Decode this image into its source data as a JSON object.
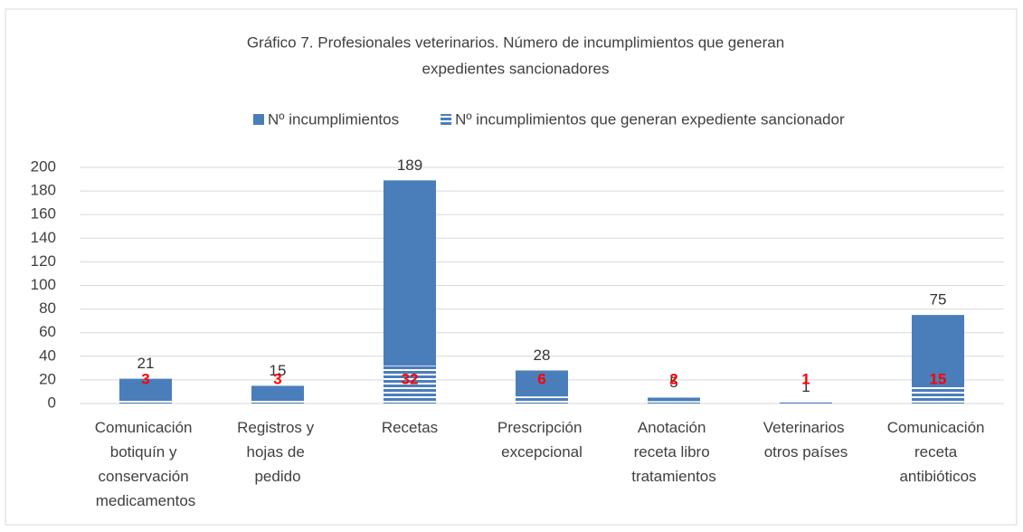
{
  "chart_data": {
    "type": "bar",
    "title_lines": [
      "Gráfico 7. Profesionales veterinarios. Número de incumplimientos que generan",
      "expedientes sancionadores"
    ],
    "categories": [
      "Comunicación botiquín y conservación medicamentos",
      "Registros y hojas de pedido",
      "Recetas",
      "Prescripción excepcional",
      "Anotación receta libro tratamientos",
      "Veterinarios otros países",
      "Comunicación receta antibióticos"
    ],
    "series": [
      {
        "name": "Nº incumplimientos",
        "color": "#4a7ebb",
        "pattern": "solid",
        "label_color": "#333333",
        "values": [
          21,
          15,
          189,
          28,
          5,
          1,
          75
        ]
      },
      {
        "name": "Nº incumplimientos que generan expediente sancionador",
        "color": "#4a7ebb",
        "pattern": "horizontal-stripes",
        "label_color": "#ff0000",
        "values": [
          3,
          3,
          32,
          6,
          2,
          1,
          15
        ]
      }
    ],
    "ylim": [
      0,
      200
    ],
    "yticks": [
      0,
      20,
      40,
      60,
      80,
      100,
      120,
      140,
      160,
      180,
      200
    ],
    "grid": true,
    "legend": "top"
  }
}
